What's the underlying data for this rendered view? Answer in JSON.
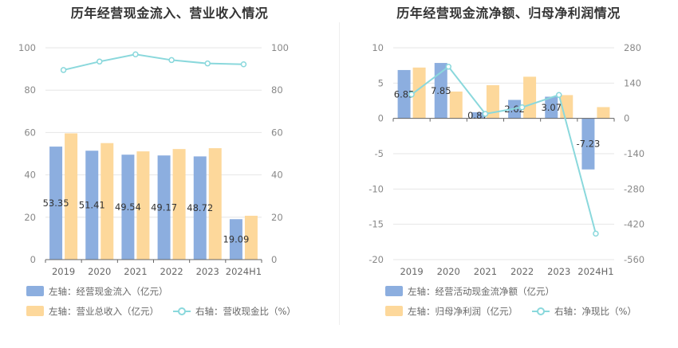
{
  "colors": {
    "blue": "#8caedf",
    "orange": "#fdd89b",
    "teal": "#8ad8dc"
  },
  "chart_data": [
    {
      "type": "bar",
      "title": "历年经营现金流入、营业收入情况",
      "categories": [
        "2019",
        "2020",
        "2021",
        "2022",
        "2023",
        "2024H1"
      ],
      "left_axis": {
        "ylim": [
          0,
          100
        ],
        "ticks": [
          "0",
          "20",
          "40",
          "60",
          "80",
          "100"
        ]
      },
      "right_axis": {
        "ylim": [
          0,
          100
        ],
        "ticks": [
          "0",
          "20",
          "40",
          "60",
          "80",
          "100"
        ]
      },
      "series": [
        {
          "name": "左轴：经营现金流入（亿元）",
          "axis": "left",
          "kind": "bar",
          "color": "#8caedf",
          "values": [
            53.35,
            51.41,
            49.54,
            49.17,
            48.72,
            19.09
          ],
          "labels": [
            "53.35",
            "51.41",
            "49.54",
            "49.17",
            "48.72",
            "19.09"
          ]
        },
        {
          "name": "左轴：营业总收入（亿元）",
          "axis": "left",
          "kind": "bar",
          "color": "#fdd89b",
          "values": [
            59.6,
            55.0,
            51.1,
            52.2,
            52.6,
            20.7
          ]
        },
        {
          "name": "右轴：营收现金比（%）",
          "axis": "right",
          "kind": "line",
          "color": "#8ad8dc",
          "values": [
            89.5,
            93.5,
            96.9,
            94.2,
            92.6,
            92.2
          ]
        }
      ],
      "legend_rows": [
        [
          "左轴：经营现金流入（亿元）"
        ],
        [
          "左轴：营业总收入（亿元）",
          "右轴：营收现金比（%）"
        ]
      ]
    },
    {
      "type": "bar",
      "title": "历年经营现金流净额、归母净利润情况",
      "categories": [
        "2019",
        "2020",
        "2021",
        "2022",
        "2023",
        "2024H1"
      ],
      "left_axis": {
        "ylim": [
          -20,
          10
        ],
        "ticks": [
          "-20",
          "-15",
          "-10",
          "-5",
          "0",
          "5",
          "10"
        ]
      },
      "right_axis": {
        "ylim": [
          -560,
          280
        ],
        "ticks": [
          "-560",
          "-420",
          "-280",
          "-140",
          "0",
          "140",
          "280"
        ]
      },
      "series": [
        {
          "name": "左轴：经营活动现金流净额（亿元）",
          "axis": "left",
          "kind": "bar",
          "color": "#8caedf",
          "values": [
            6.85,
            7.85,
            0.87,
            2.62,
            3.07,
            -7.23
          ],
          "labels": [
            "6.85",
            "7.85",
            "0.87",
            "2.62",
            "3.07",
            "-7.23"
          ]
        },
        {
          "name": "左轴：归母净利润（亿元）",
          "axis": "left",
          "kind": "bar",
          "color": "#fdd89b",
          "values": [
            7.2,
            3.8,
            4.7,
            5.9,
            3.3,
            1.6
          ]
        },
        {
          "name": "右轴：净现比（%）",
          "axis": "right",
          "kind": "line",
          "color": "#8ad8dc",
          "values": [
            95,
            205,
            18,
            44,
            93,
            -457
          ]
        }
      ],
      "legend_rows": [
        [
          "左轴：经营活动现金流净额（亿元）"
        ],
        [
          "左轴：归母净利润（亿元）",
          "右轴：净现比（%）"
        ]
      ]
    }
  ]
}
